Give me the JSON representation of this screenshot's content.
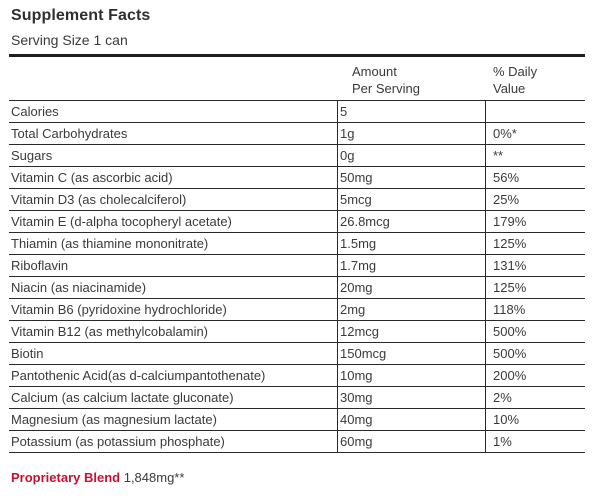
{
  "panel": {
    "title": "Supplement Facts",
    "serving_size": "Serving Size 1 can"
  },
  "table": {
    "header_amount_line1": "Amount",
    "header_amount_line2": "Per Serving",
    "header_dv_line1": "% Daily",
    "header_dv_line2": "Value",
    "rows": [
      {
        "name": "Calories",
        "amount": "5",
        "dv": ""
      },
      {
        "name": "Total Carbohydrates",
        "amount": "1g",
        "dv": "0%*"
      },
      {
        "name": "Sugars",
        "amount": "0g",
        "dv": "**"
      },
      {
        "name": "Vitamin C (as ascorbic acid)",
        "amount": "50mg",
        "dv": "56%"
      },
      {
        "name": "Vitamin D3 (as cholecalciferol)",
        "amount": "5mcg",
        "dv": "25%"
      },
      {
        "name": "Vitamin E (d-alpha tocopheryl acetate)",
        "amount": "26.8mcg",
        "dv": "179%"
      },
      {
        "name": "Thiamin (as thiamine mononitrate)",
        "amount": "1.5mg",
        "dv": "125%"
      },
      {
        "name": "Riboflavin",
        "amount": "1.7mg",
        "dv": "131%"
      },
      {
        "name": "Niacin (as niacinamide)",
        "amount": "20mg",
        "dv": "125%"
      },
      {
        "name": "Vitamin B6 (pyridoxine hydrochloride)",
        "amount": "2mg",
        "dv": "118%"
      },
      {
        "name": "Vitamin B12 (as methylcobalamin)",
        "amount": "12mcg",
        "dv": "500%"
      },
      {
        "name": "Biotin",
        "amount": "150mcg",
        "dv": "500%"
      },
      {
        "name": "Pantothenic Acid(as d-calciumpantothenate)",
        "amount": "10mg",
        "dv": "200%"
      },
      {
        "name": "Calcium (as calcium lactate gluconate)",
        "amount": "30mg",
        "dv": "2%"
      },
      {
        "name": "Magnesium (as magnesium lactate)",
        "amount": "40mg",
        "dv": "10%"
      },
      {
        "name": "Potassium (as potassium phosphate)",
        "amount": "60mg",
        "dv": "1%"
      }
    ]
  },
  "blend": {
    "label": "Proprietary Blend",
    "value": "1,848mg**"
  },
  "colors": {
    "accent_red": "#c8102e",
    "rule": "#2a2a2a",
    "text": "#3a3a3a"
  }
}
